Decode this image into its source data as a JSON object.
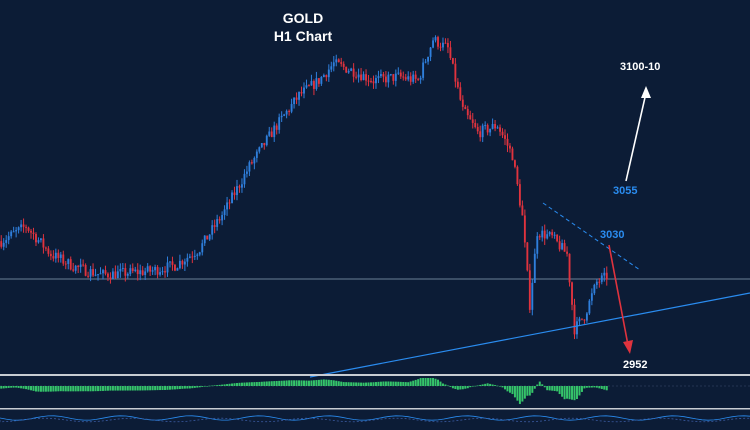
{
  "chart_data": {
    "type": "candlestick",
    "title": "GOLD",
    "subtitle": "H1 Chart",
    "colors": {
      "background": "#0c1c36",
      "bull": "#2f7fdc",
      "bear": "#e0333e",
      "annotation_blue": "#2a8cf0",
      "annotation_white": "#ffffff",
      "target_arrow": "#e0333e",
      "histogram_pos": "#35c46a",
      "histogram_neg": "#35c46a",
      "trendline": "#2a8cf0",
      "horizontal_line": "#8aa0b8",
      "separator": "#c8ccd2"
    },
    "price_path": [
      {
        "i": 0,
        "p": 3022
      },
      {
        "i": 10,
        "p": 3030
      },
      {
        "i": 20,
        "p": 3015
      },
      {
        "i": 30,
        "p": 3008
      },
      {
        "i": 40,
        "p": 3004
      },
      {
        "i": 50,
        "p": 3005
      },
      {
        "i": 60,
        "p": 3006
      },
      {
        "i": 70,
        "p": 3009
      },
      {
        "i": 80,
        "p": 3018
      },
      {
        "i": 90,
        "p": 3038
      },
      {
        "i": 100,
        "p": 3062
      },
      {
        "i": 110,
        "p": 3082
      },
      {
        "i": 120,
        "p": 3100
      },
      {
        "i": 128,
        "p": 3108
      },
      {
        "i": 134,
        "p": 3117
      },
      {
        "i": 142,
        "p": 3113
      },
      {
        "i": 150,
        "p": 3108
      },
      {
        "i": 160,
        "p": 3110
      },
      {
        "i": 168,
        "p": 3108
      },
      {
        "i": 174,
        "p": 3130
      },
      {
        "i": 180,
        "p": 3125
      },
      {
        "i": 186,
        "p": 3092
      },
      {
        "i": 192,
        "p": 3080
      },
      {
        "i": 200,
        "p": 3084
      },
      {
        "i": 206,
        "p": 3068
      },
      {
        "i": 210,
        "p": 3035
      },
      {
        "i": 213,
        "p": 2988
      },
      {
        "i": 216,
        "p": 3027
      },
      {
        "i": 222,
        "p": 3024
      },
      {
        "i": 228,
        "p": 3015
      },
      {
        "i": 231,
        "p": 2975
      },
      {
        "i": 235,
        "p": 2982
      },
      {
        "i": 240,
        "p": 3000
      },
      {
        "i": 244,
        "p": 3003
      }
    ],
    "seed_candles": 244,
    "annotations": [
      {
        "text": "3100-10",
        "kind": "target"
      },
      {
        "text": "3055",
        "kind": "level"
      },
      {
        "text": "3030",
        "kind": "level"
      },
      {
        "text": "2952",
        "kind": "target"
      }
    ],
    "indicator": {
      "type": "histogram",
      "panes": 2
    },
    "grid": false,
    "legend": "none"
  }
}
